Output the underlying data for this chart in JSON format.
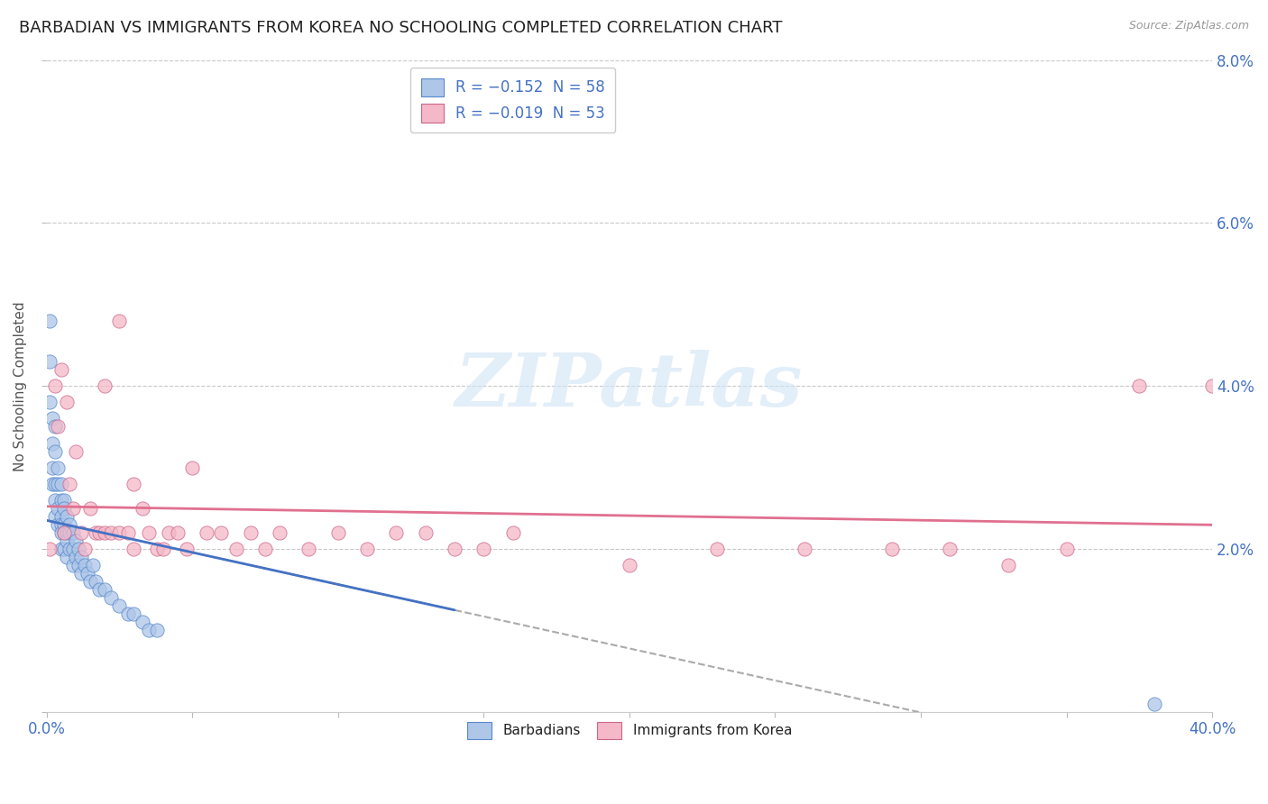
{
  "title": "BARBADIAN VS IMMIGRANTS FROM KOREA NO SCHOOLING COMPLETED CORRELATION CHART",
  "source": "Source: ZipAtlas.com",
  "ylabel": "No Schooling Completed",
  "xlim": [
    0.0,
    0.4
  ],
  "ylim": [
    0.0,
    0.08
  ],
  "xticks": [
    0.0,
    0.05,
    0.1,
    0.15,
    0.2,
    0.25,
    0.3,
    0.35,
    0.4
  ],
  "yticks": [
    0.0,
    0.02,
    0.04,
    0.06,
    0.08
  ],
  "right_ytick_labels": [
    "",
    "2.0%",
    "4.0%",
    "6.0%",
    "8.0%"
  ],
  "xtick_labels": [
    "0.0%",
    "",
    "",
    "",
    "",
    "",
    "",
    "",
    "40.0%"
  ],
  "barbadian_color": "#aec6e8",
  "barbadian_edge_color": "#5588cc",
  "korea_color": "#f4b8c8",
  "korea_edge_color": "#cc6688",
  "blue_trend_color": "#4472c4",
  "pink_trend_color": "#e07090",
  "dash_trend_color": "#aaaaaa",
  "title_fontsize": 13,
  "axis_label_fontsize": 11,
  "tick_fontsize": 12,
  "background_color": "#ffffff",
  "grid_color": "#bbbbbb",
  "watermark_color": "#d0e4f4",
  "barbadian_x": [
    0.001,
    0.001,
    0.001,
    0.002,
    0.002,
    0.002,
    0.002,
    0.003,
    0.003,
    0.003,
    0.003,
    0.003,
    0.004,
    0.004,
    0.004,
    0.004,
    0.005,
    0.005,
    0.005,
    0.005,
    0.005,
    0.005,
    0.006,
    0.006,
    0.006,
    0.006,
    0.006,
    0.007,
    0.007,
    0.007,
    0.007,
    0.008,
    0.008,
    0.008,
    0.009,
    0.009,
    0.009,
    0.01,
    0.01,
    0.011,
    0.011,
    0.012,
    0.012,
    0.013,
    0.014,
    0.015,
    0.016,
    0.017,
    0.018,
    0.02,
    0.022,
    0.025,
    0.028,
    0.03,
    0.033,
    0.035,
    0.038,
    0.38
  ],
  "barbadian_y": [
    0.048,
    0.043,
    0.038,
    0.036,
    0.033,
    0.03,
    0.028,
    0.035,
    0.032,
    0.028,
    0.026,
    0.024,
    0.03,
    0.028,
    0.025,
    0.023,
    0.028,
    0.026,
    0.024,
    0.023,
    0.022,
    0.02,
    0.026,
    0.025,
    0.023,
    0.022,
    0.02,
    0.024,
    0.022,
    0.021,
    0.019,
    0.023,
    0.022,
    0.02,
    0.022,
    0.02,
    0.018,
    0.021,
    0.019,
    0.02,
    0.018,
    0.019,
    0.017,
    0.018,
    0.017,
    0.016,
    0.018,
    0.016,
    0.015,
    0.015,
    0.014,
    0.013,
    0.012,
    0.012,
    0.011,
    0.01,
    0.01,
    0.001
  ],
  "korea_x": [
    0.001,
    0.003,
    0.004,
    0.005,
    0.006,
    0.007,
    0.008,
    0.009,
    0.01,
    0.012,
    0.013,
    0.015,
    0.017,
    0.018,
    0.02,
    0.02,
    0.022,
    0.025,
    0.025,
    0.028,
    0.03,
    0.03,
    0.033,
    0.035,
    0.038,
    0.04,
    0.042,
    0.045,
    0.048,
    0.05,
    0.055,
    0.06,
    0.065,
    0.07,
    0.075,
    0.08,
    0.09,
    0.1,
    0.11,
    0.12,
    0.13,
    0.14,
    0.15,
    0.16,
    0.2,
    0.23,
    0.26,
    0.29,
    0.31,
    0.33,
    0.35,
    0.375,
    0.4
  ],
  "korea_y": [
    0.02,
    0.04,
    0.035,
    0.042,
    0.022,
    0.038,
    0.028,
    0.025,
    0.032,
    0.022,
    0.02,
    0.025,
    0.022,
    0.022,
    0.04,
    0.022,
    0.022,
    0.048,
    0.022,
    0.022,
    0.028,
    0.02,
    0.025,
    0.022,
    0.02,
    0.02,
    0.022,
    0.022,
    0.02,
    0.03,
    0.022,
    0.022,
    0.02,
    0.022,
    0.02,
    0.022,
    0.02,
    0.022,
    0.02,
    0.022,
    0.022,
    0.02,
    0.02,
    0.022,
    0.018,
    0.02,
    0.02,
    0.02,
    0.02,
    0.018,
    0.02,
    0.04,
    0.04
  ]
}
